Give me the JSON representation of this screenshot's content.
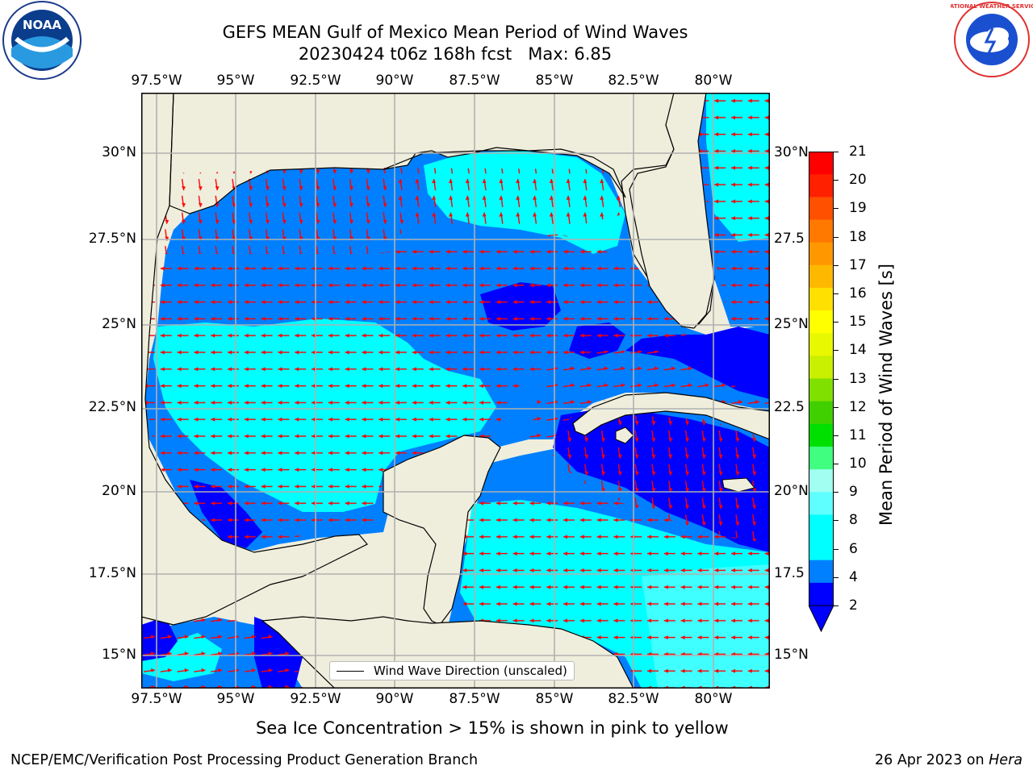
{
  "title_line1": "GEFS MEAN Gulf of Mexico Mean Period of Wind Waves",
  "title_line2": "20230424 t06z 168h fcst   Max: 6.85",
  "logos": {
    "noaa": {
      "label": "NOAA",
      "icon": "noaa-logo"
    },
    "nws": {
      "label": "NATIONAL WEATHER SERVICE",
      "icon": "nws-logo"
    }
  },
  "map": {
    "lon_ticks": [
      "97.5°W",
      "95°W",
      "92.5°W",
      "90°W",
      "87.5°W",
      "85°W",
      "82.5°W",
      "80°W"
    ],
    "lat_ticks_left": [
      "30°N",
      "27.5°N",
      "25°N",
      "22.5°N",
      "20°N",
      "17.5°N",
      "15°N"
    ],
    "lat_ticks_right": [
      "30°N",
      "27.5",
      "25°N",
      "22.5",
      "20°N",
      "17.5",
      "15°N"
    ],
    "legend_label": "Wind Wave Direction (unscaled)",
    "colors": {
      "land": "#efeedd",
      "ocean_2_4": "#0080ff",
      "ocean_0_2": "#0000ff",
      "ocean_4_6": "#00ffff",
      "ocean_6_8": "#40ffff",
      "arrow": "#ff0000"
    }
  },
  "colorbar": {
    "label": "Mean Period of Wind Waves [s]",
    "tick_labels": [
      "21",
      "20",
      "19",
      "18",
      "17",
      "16",
      "15",
      "14",
      "13",
      "12",
      "11",
      "10",
      "9",
      "8",
      "6",
      "4",
      "2"
    ],
    "colors": [
      "#ff0000",
      "#ff2000",
      "#ff5000",
      "#ff7800",
      "#ff9800",
      "#ffb800",
      "#ffe000",
      "#ffff00",
      "#e8f800",
      "#c8f000",
      "#80e000",
      "#40d000",
      "#00e000",
      "#40ff80",
      "#a0fff0",
      "#60ffff",
      "#00ffff",
      "#00ffff",
      "#0080ff",
      "#0000ff"
    ]
  },
  "note": "Sea Ice Concentration > 15% is shown in pink to yellow",
  "footer_left": "NCEP/EMC/Verification Post Processing Product Generation Branch",
  "footer_right_date": "26 Apr 2023 on ",
  "footer_right_host": "Hera"
}
